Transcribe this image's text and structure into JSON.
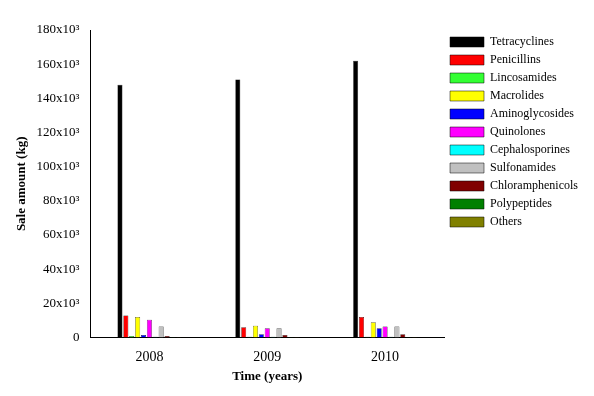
{
  "chart_data": {
    "type": "bar",
    "x_label": "Time (years)",
    "y_label": "Sale amount (kg)",
    "categories": [
      "2008",
      "2009",
      "2010"
    ],
    "series": [
      {
        "name": "Tetracyclines",
        "color": "#000000",
        "values": [
          148000,
          151000,
          162000
        ]
      },
      {
        "name": "Penicillins",
        "color": "#ff0000",
        "values": [
          13000,
          6000,
          12000
        ]
      },
      {
        "name": "Lincosamides",
        "color": "#33ff33",
        "values": [
          1000,
          500,
          500
        ]
      },
      {
        "name": "Macrolides",
        "color": "#ffff00",
        "values": [
          12000,
          7000,
          9000
        ]
      },
      {
        "name": "Aminoglycosides",
        "color": "#0000ff",
        "values": [
          1500,
          2000,
          5500
        ]
      },
      {
        "name": "Quinolones",
        "color": "#ff00ff",
        "values": [
          10500,
          5500,
          6500
        ]
      },
      {
        "name": "Cephalosporines",
        "color": "#00ffff",
        "values": [
          500,
          500,
          500
        ]
      },
      {
        "name": "Sulfonamides",
        "color": "#c0c0c0",
        "values": [
          6500,
          5500,
          6500
        ]
      },
      {
        "name": "Chloramphenicols",
        "color": "#800000",
        "values": [
          1000,
          1500,
          2000
        ]
      },
      {
        "name": "Polypeptides",
        "color": "#008000",
        "values": [
          300,
          300,
          300
        ]
      },
      {
        "name": "Others",
        "color": "#808000",
        "values": [
          300,
          300,
          300
        ]
      }
    ],
    "ylim": [
      0,
      180000
    ],
    "yticks": [
      0,
      {
        "value": 20000,
        "label": "20x10³"
      },
      {
        "value": 40000,
        "label": "40x10³"
      },
      {
        "value": 60000,
        "label": "60x10³"
      },
      {
        "value": 80000,
        "label": "80x10³"
      },
      {
        "value": 100000,
        "label": "100x10³"
      },
      {
        "value": 120000,
        "label": "120x10³"
      },
      {
        "value": 140000,
        "label": "140x10³"
      },
      {
        "value": 160000,
        "label": "160x10³"
      },
      {
        "value": 180000,
        "label": "180x10³"
      }
    ],
    "grid": false,
    "legend": "upper right"
  }
}
